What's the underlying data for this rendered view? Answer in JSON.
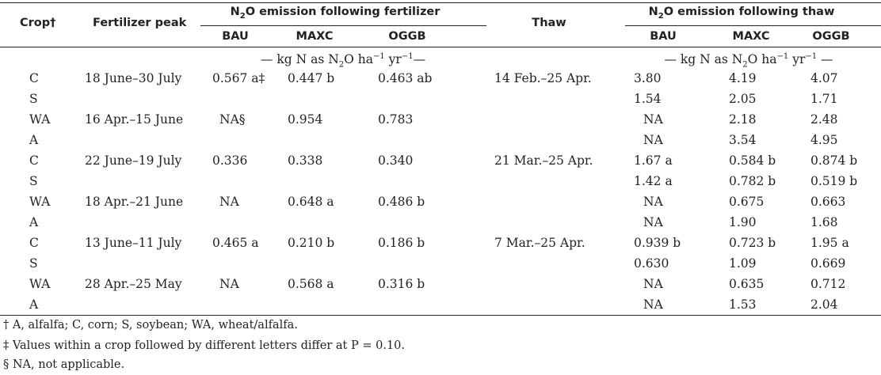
{
  "header": {
    "crop": "Crop†",
    "fert_peak": "Fertilizer peak",
    "fert_group_pre": "N",
    "fert_group_sub": "2",
    "fert_group_post": "O emission following fertilizer",
    "thaw": "Thaw",
    "thaw_group_pre": "N",
    "thaw_group_sub": "2",
    "thaw_group_post": "O emission following thaw",
    "bau": "BAU",
    "maxc": "MAXC",
    "oggb": "OGGB",
    "units_left_pre": "— kg N as N",
    "units_left_sub": "2",
    "units_left_mid": "O ha",
    "units_left_sup1": "−1",
    "units_left_mid2": " yr",
    "units_left_sup2": "−1",
    "units_left_post": "—",
    "units_right_pre": "— kg N as N",
    "units_right_sub": "2",
    "units_right_mid": "O ha",
    "units_right_sup1": "−1",
    "units_right_mid2": " yr",
    "units_right_sup2": "−1",
    "units_right_post": " —"
  },
  "rows": [
    {
      "crop": "C",
      "fert_peak": "18 June–30 July",
      "f_bau": "0.567 a‡",
      "f_maxc": "0.447 b",
      "f_oggb": "0.463 ab",
      "thaw": "14 Feb.–25 Apr.",
      "t_bau": "3.80",
      "t_maxc": "4.19",
      "t_oggb": "4.07"
    },
    {
      "crop": "S",
      "fert_peak": "",
      "f_bau": "",
      "f_maxc": "",
      "f_oggb": "",
      "thaw": "",
      "t_bau": "1.54",
      "t_maxc": "2.05",
      "t_oggb": "1.71"
    },
    {
      "crop": "WA",
      "fert_peak": "16 Apr.–15 June",
      "f_bau": "NA§",
      "f_maxc": "0.954",
      "f_oggb": "0.783",
      "thaw": "",
      "t_bau": "NA",
      "t_maxc": "2.18",
      "t_oggb": "2.48"
    },
    {
      "crop": "A",
      "fert_peak": "",
      "f_bau": "",
      "f_maxc": "",
      "f_oggb": "",
      "thaw": "",
      "t_bau": "NA",
      "t_maxc": "3.54",
      "t_oggb": "4.95"
    },
    {
      "crop": "C",
      "fert_peak": "22 June–19 July",
      "f_bau": "0.336",
      "f_maxc": "0.338",
      "f_oggb": "0.340",
      "thaw": "21 Mar.–25 Apr.",
      "t_bau": "1.67 a",
      "t_maxc": "0.584 b",
      "t_oggb": "0.874 b"
    },
    {
      "crop": "S",
      "fert_peak": "",
      "f_bau": "",
      "f_maxc": "",
      "f_oggb": "",
      "thaw": "",
      "t_bau": "1.42 a",
      "t_maxc": "0.782 b",
      "t_oggb": "0.519 b"
    },
    {
      "crop": "WA",
      "fert_peak": "18 Apr.–21 June",
      "f_bau": "NA",
      "f_maxc": "0.648 a",
      "f_oggb": "0.486 b",
      "thaw": "",
      "t_bau": "NA",
      "t_maxc": "0.675",
      "t_oggb": "0.663"
    },
    {
      "crop": "A",
      "fert_peak": "",
      "f_bau": "",
      "f_maxc": "",
      "f_oggb": "",
      "thaw": "",
      "t_bau": "NA",
      "t_maxc": "1.90",
      "t_oggb": "1.68"
    },
    {
      "crop": "C",
      "fert_peak": "13 June–11 July",
      "f_bau": "0.465 a",
      "f_maxc": "0.210 b",
      "f_oggb": "0.186 b",
      "thaw": "7 Mar.–25 Apr.",
      "t_bau": "0.939 b",
      "t_maxc": "0.723 b",
      "t_oggb": "1.95 a"
    },
    {
      "crop": "S",
      "fert_peak": "",
      "f_bau": "",
      "f_maxc": "",
      "f_oggb": "",
      "thaw": "",
      "t_bau": "0.630",
      "t_maxc": "1.09",
      "t_oggb": "0.669"
    },
    {
      "crop": "WA",
      "fert_peak": "28 Apr.–25 May",
      "f_bau": "NA",
      "f_maxc": "0.568 a",
      "f_oggb": "0.316 b",
      "thaw": "",
      "t_bau": "NA",
      "t_maxc": "0.635",
      "t_oggb": "0.712"
    },
    {
      "crop": "A",
      "fert_peak": "",
      "f_bau": "",
      "f_maxc": "",
      "f_oggb": "",
      "thaw": "",
      "t_bau": "NA",
      "t_maxc": "1.53",
      "t_oggb": "2.04"
    }
  ],
  "footnotes": {
    "dagger": "† A, alfalfa; C, corn; S, soybean; WA, wheat/alfalfa.",
    "ddagger": "‡ Values within a crop followed by different letters differ at P = 0.10.",
    "section": "§ NA, not applicable."
  }
}
